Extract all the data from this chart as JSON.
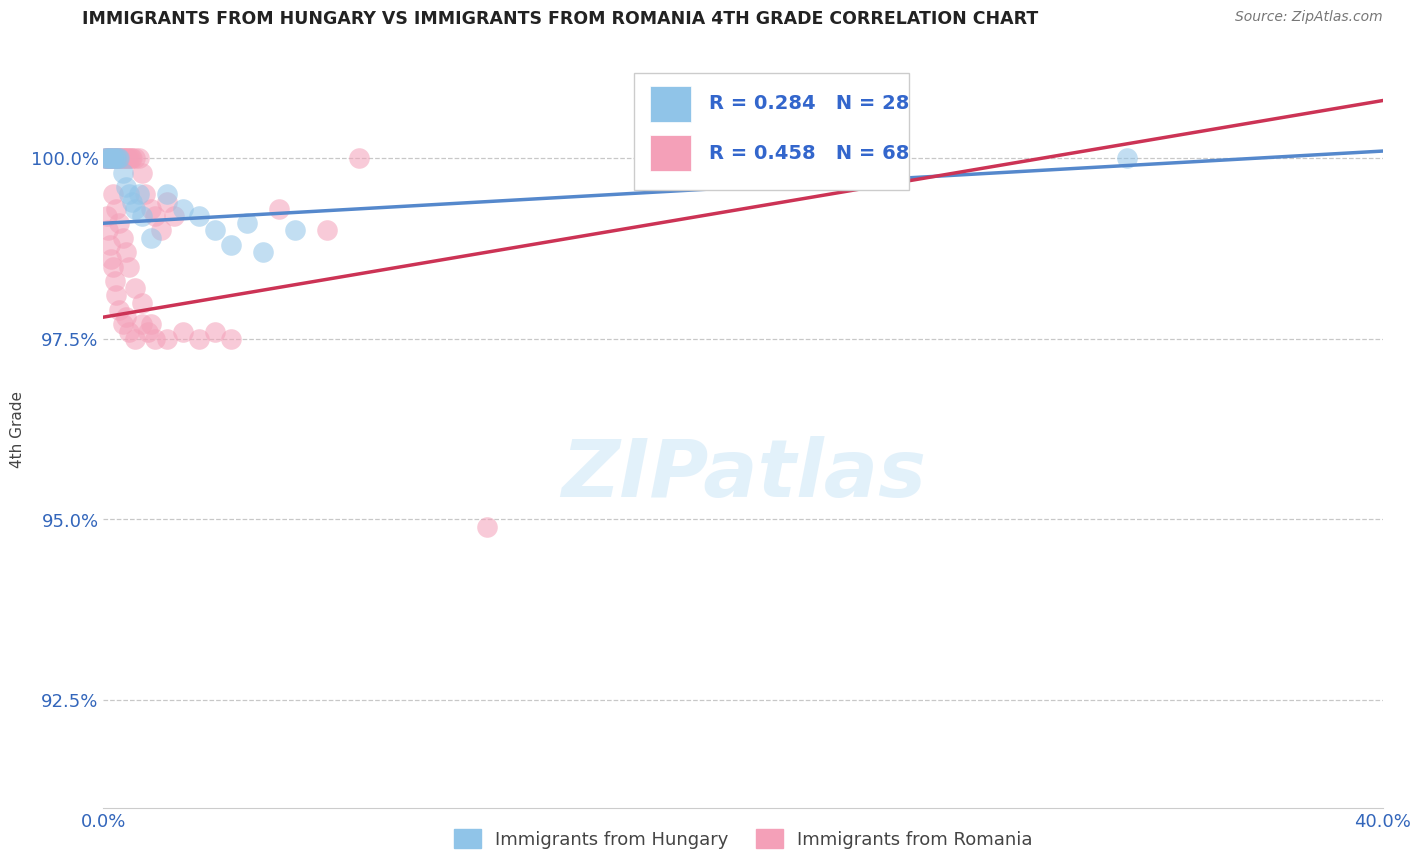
{
  "title": "IMMIGRANTS FROM HUNGARY VS IMMIGRANTS FROM ROMANIA 4TH GRADE CORRELATION CHART",
  "source": "Source: ZipAtlas.com",
  "ylabel": "4th Grade",
  "yticks": [
    92.5,
    95.0,
    97.5,
    100.0
  ],
  "ytick_labels": [
    "92.5%",
    "95.0%",
    "97.5%",
    "100.0%"
  ],
  "xlim": [
    0.0,
    40.0
  ],
  "ylim": [
    91.0,
    101.5
  ],
  "legend_R_hungary": "R = 0.284",
  "legend_N_hungary": "N = 28",
  "legend_R_romania": "R = 0.458",
  "legend_N_romania": "N = 68",
  "hungary_color": "#90C4E8",
  "romania_color": "#F4A0B8",
  "hungary_line_color": "#5588CC",
  "romania_line_color": "#CC3355",
  "watermark": "ZIPatlas",
  "hungary_scatter_x": [
    0.05,
    0.1,
    0.15,
    0.2,
    0.25,
    0.3,
    0.35,
    0.4,
    0.45,
    0.5,
    0.6,
    0.7,
    0.8,
    0.9,
    1.0,
    1.1,
    1.2,
    1.5,
    2.0,
    2.5,
    3.0,
    3.5,
    4.0,
    4.5,
    5.0,
    6.0,
    19.0,
    32.0
  ],
  "hungary_scatter_y": [
    100.0,
    100.0,
    100.0,
    100.0,
    100.0,
    100.0,
    100.0,
    100.0,
    100.0,
    100.0,
    99.8,
    99.6,
    99.5,
    99.4,
    99.3,
    99.5,
    99.2,
    98.9,
    99.5,
    99.3,
    99.2,
    99.0,
    98.8,
    99.1,
    98.7,
    99.0,
    100.0,
    100.0
  ],
  "romania_scatter_x": [
    0.05,
    0.08,
    0.1,
    0.12,
    0.15,
    0.18,
    0.2,
    0.22,
    0.25,
    0.28,
    0.3,
    0.32,
    0.35,
    0.38,
    0.4,
    0.42,
    0.45,
    0.5,
    0.55,
    0.6,
    0.65,
    0.7,
    0.75,
    0.8,
    0.85,
    0.9,
    1.0,
    1.1,
    1.2,
    1.3,
    1.5,
    1.6,
    1.8,
    2.0,
    2.2,
    0.1,
    0.15,
    0.2,
    0.25,
    0.3,
    0.35,
    0.4,
    0.5,
    0.6,
    0.7,
    0.8,
    1.0,
    1.2,
    1.4,
    1.6,
    0.3,
    0.4,
    0.5,
    0.6,
    0.7,
    0.8,
    1.0,
    1.2,
    1.5,
    2.0,
    2.5,
    3.0,
    3.5,
    4.0,
    5.5,
    7.0,
    8.0,
    12.0
  ],
  "romania_scatter_y": [
    100.0,
    100.0,
    100.0,
    100.0,
    100.0,
    100.0,
    100.0,
    100.0,
    100.0,
    100.0,
    100.0,
    100.0,
    100.0,
    100.0,
    100.0,
    100.0,
    100.0,
    100.0,
    100.0,
    100.0,
    100.0,
    100.0,
    100.0,
    100.0,
    100.0,
    100.0,
    100.0,
    100.0,
    99.8,
    99.5,
    99.3,
    99.2,
    99.0,
    99.4,
    99.2,
    99.2,
    99.0,
    98.8,
    98.6,
    98.5,
    98.3,
    98.1,
    97.9,
    97.7,
    97.8,
    97.6,
    97.5,
    97.7,
    97.6,
    97.5,
    99.5,
    99.3,
    99.1,
    98.9,
    98.7,
    98.5,
    98.2,
    98.0,
    97.7,
    97.5,
    97.6,
    97.5,
    97.6,
    97.5,
    99.3,
    99.0,
    100.0,
    94.9
  ],
  "hungary_line_x0": 0.0,
  "hungary_line_x1": 40.0,
  "hungary_line_y0": 99.1,
  "hungary_line_y1": 100.1,
  "romania_line_x0": 0.0,
  "romania_line_x1": 40.0,
  "romania_line_y0": 97.8,
  "romania_line_y1": 100.8
}
